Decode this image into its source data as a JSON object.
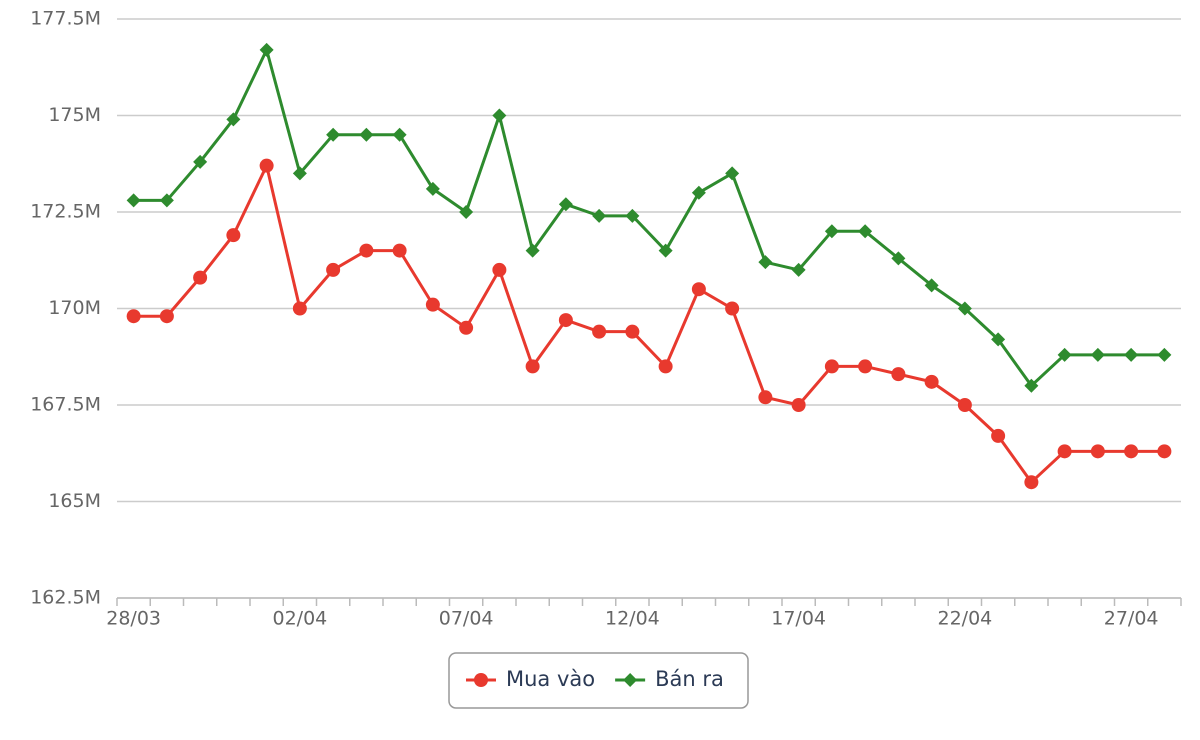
{
  "chart_data": {
    "type": "line",
    "categories": [
      "28/03",
      null,
      null,
      null,
      null,
      "02/04",
      null,
      null,
      null,
      null,
      "07/04",
      null,
      null,
      null,
      null,
      "12/04",
      null,
      null,
      null,
      null,
      "17/04",
      null,
      null,
      null,
      null,
      "22/04",
      null,
      null,
      null,
      null,
      "27/04",
      null
    ],
    "series": [
      {
        "name": "Mua vào",
        "color": "#e8392e",
        "marker": "circle",
        "values": [
          169.8,
          169.8,
          170.8,
          171.9,
          173.7,
          170.0,
          171.0,
          171.5,
          171.5,
          170.1,
          169.5,
          171.0,
          168.5,
          169.7,
          169.4,
          169.4,
          168.5,
          170.5,
          170.0,
          167.7,
          167.5,
          168.5,
          168.5,
          168.3,
          168.1,
          167.5,
          166.7,
          165.5,
          166.3,
          166.3,
          166.3,
          166.3
        ]
      },
      {
        "name": "Bán ra",
        "color": "#2e8b2e",
        "marker": "diamond",
        "values": [
          172.8,
          172.8,
          173.8,
          174.9,
          176.7,
          173.5,
          174.5,
          174.5,
          174.5,
          173.1,
          172.5,
          175.0,
          171.5,
          172.7,
          172.4,
          172.4,
          171.5,
          173.0,
          173.5,
          171.2,
          171.0,
          172.0,
          172.0,
          171.3,
          170.6,
          170.0,
          169.2,
          168.0,
          168.8,
          168.8,
          168.8,
          168.8
        ]
      }
    ],
    "ylim": [
      162.5,
      177.5
    ],
    "yticks": [
      {
        "value": 162.5,
        "label": "162.5M"
      },
      {
        "value": 165,
        "label": "165M"
      },
      {
        "value": 167.5,
        "label": "167.5M"
      },
      {
        "value": 170,
        "label": "170M"
      },
      {
        "value": 172.5,
        "label": "172.5M"
      },
      {
        "value": 175,
        "label": "175M"
      },
      {
        "value": 177.5,
        "label": "177.5M"
      }
    ],
    "grid": true
  }
}
